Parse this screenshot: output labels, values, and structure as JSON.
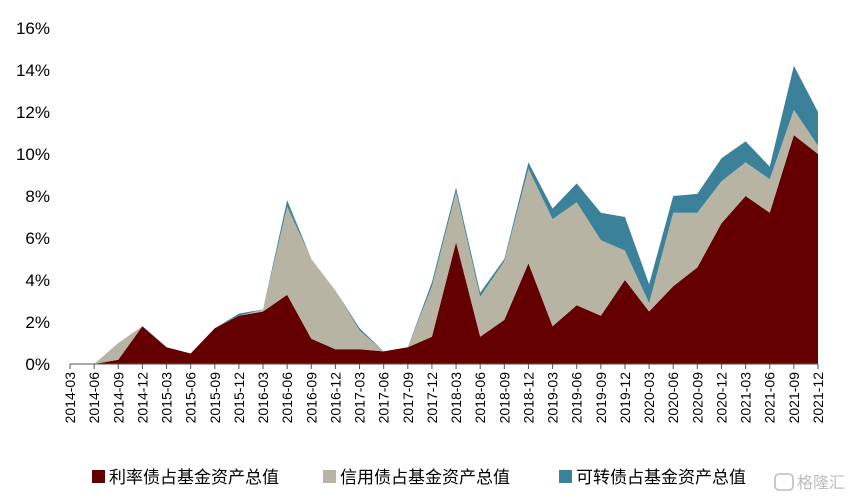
{
  "chart_data": {
    "type": "area",
    "stacked": true,
    "x": [
      "2014-03",
      "2014-06",
      "2014-09",
      "2014-12",
      "2015-03",
      "2015-06",
      "2015-09",
      "2015-12",
      "2016-03",
      "2016-06",
      "2016-09",
      "2016-12",
      "2017-03",
      "2017-06",
      "2017-09",
      "2017-12",
      "2018-03",
      "2018-06",
      "2018-09",
      "2018-12",
      "2019-03",
      "2019-06",
      "2019-09",
      "2019-12",
      "2020-03",
      "2020-06",
      "2020-09",
      "2020-12",
      "2021-03",
      "2021-06",
      "2021-09",
      "2021-12"
    ],
    "series": [
      {
        "name": "利率债占基金资产总值",
        "color": "#640000",
        "values": [
          0,
          0,
          0.2,
          1.8,
          0.8,
          0.5,
          1.7,
          2.3,
          2.5,
          3.3,
          1.2,
          0.7,
          0.7,
          0.6,
          0.8,
          1.3,
          5.8,
          1.3,
          2.1,
          4.8,
          1.8,
          2.8,
          2.3,
          4.0,
          2.5,
          3.7,
          4.6,
          6.7,
          8.0,
          7.2,
          10.9,
          10.0
        ]
      },
      {
        "name": "信用债占基金资产总值",
        "color": "#b8b4a4",
        "values": [
          0,
          0,
          0.8,
          0,
          0,
          0,
          0,
          0,
          0.1,
          4.2,
          3.8,
          2.8,
          0.9,
          0,
          0,
          2.4,
          2.4,
          1.9,
          2.8,
          4.5,
          5.1,
          4.9,
          3.6,
          1.4,
          0.4,
          3.5,
          2.6,
          2.0,
          1.6,
          1.6,
          1.2,
          0.4
        ]
      },
      {
        "name": "可转债占基金资产总值",
        "color": "#3b8199",
        "values": [
          0,
          0,
          0,
          0,
          0,
          0,
          0,
          0.1,
          0,
          0.3,
          0,
          0,
          0.1,
          0,
          0,
          0.2,
          0.2,
          0.2,
          0.1,
          0.3,
          0.5,
          0.9,
          1.3,
          1.6,
          0.9,
          0.8,
          0.9,
          1.1,
          1.0,
          0.6,
          2.1,
          1.6
        ]
      }
    ],
    "y_ticks": [
      "0%",
      "2%",
      "4%",
      "6%",
      "8%",
      "10%",
      "12%",
      "14%",
      "16%"
    ],
    "ylim": [
      0,
      16
    ],
    "grid": false,
    "legend_position": "bottom"
  },
  "watermark": "格隆汇"
}
